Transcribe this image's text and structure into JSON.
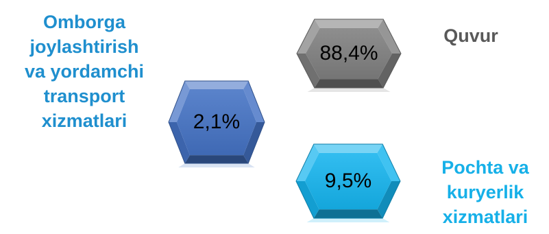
{
  "items": [
    {
      "key": "pipeline",
      "label_lines": [
        "Quvur"
      ],
      "value": "88,4%",
      "share": 88.4,
      "hex_color": "#7f7f7f",
      "label_color": "#595959"
    },
    {
      "key": "warehousing",
      "label_lines": [
        "Omborga",
        "joylashtirish",
        "va yordamchi",
        "transport",
        "xizmatlari"
      ],
      "value": "2,1%",
      "share": 2.1,
      "hex_color": "#4472c4",
      "label_color": "#1f8fce"
    },
    {
      "key": "postal",
      "label_lines": [
        "Pochta va",
        "kuryerlik",
        "xizmatlari"
      ],
      "value": "9,5%",
      "share": 9.5,
      "hex_color": "#16b4ee",
      "label_color": "#16b0e8"
    }
  ]
}
